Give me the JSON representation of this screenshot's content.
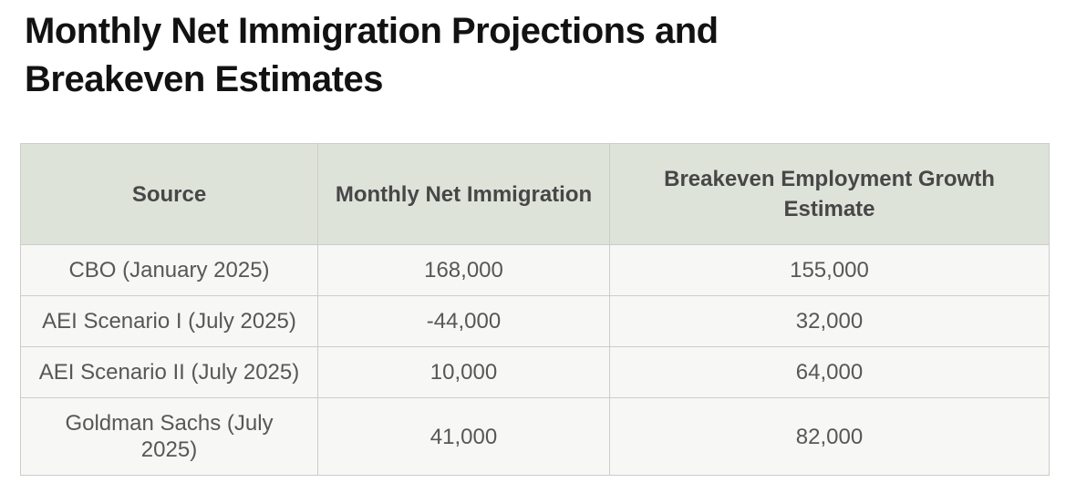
{
  "title": "Monthly Net Immigration Projections and\nBreakeven Estimates",
  "table": {
    "header": {
      "source": "Source",
      "immigration": "Monthly Net Immigration",
      "breakeven": "Breakeven Employment Growth\nEstimate"
    },
    "rows": [
      {
        "source": "CBO (January 2025)",
        "immigration": "168,000",
        "breakeven": "155,000"
      },
      {
        "source": "AEI Scenario I (July 2025)",
        "immigration": "-44,000",
        "breakeven": "32,000"
      },
      {
        "source": "AEI Scenario II (July 2025)",
        "immigration": "10,000",
        "breakeven": "64,000"
      },
      {
        "source": "Goldman Sachs (July\n2025)",
        "immigration": "41,000",
        "breakeven": "82,000"
      }
    ]
  },
  "chart_data": {
    "type": "table",
    "title": "Monthly Net Immigration Projections and Breakeven Estimates",
    "columns": [
      "Source",
      "Monthly Net Immigration",
      "Breakeven Employment Growth Estimate"
    ],
    "rows": [
      [
        "CBO (January 2025)",
        168000,
        155000
      ],
      [
        "AEI Scenario I (July 2025)",
        -44000,
        32000
      ],
      [
        "AEI Scenario II (July 2025)",
        10000,
        64000
      ],
      [
        "Goldman Sachs (July 2025)",
        41000,
        82000
      ]
    ]
  },
  "colors": {
    "title_text": "#121212",
    "header_bg": "#dee3da",
    "header_text": "#474747",
    "row_bg": "#f7f7f6",
    "cell_text": "#575757",
    "border": "#cccccc"
  }
}
